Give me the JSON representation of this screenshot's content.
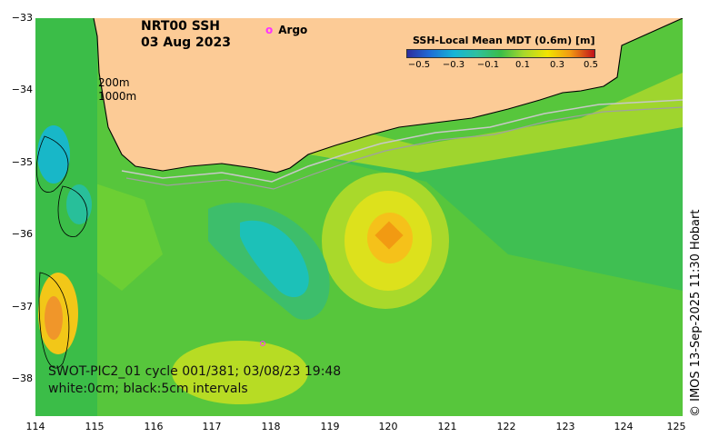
{
  "map": {
    "title_line1": "NRT00 SSH",
    "title_line2": "03 Aug 2023",
    "argo_marker": "o",
    "argo_label": "Argo",
    "depth_label_1": "200m",
    "depth_label_2": "1000m",
    "colorbar_title": "SSH-Local Mean MDT (0.6m) [m]",
    "colorbar_ticks": [
      "−0.5",
      "−0.3",
      "−0.1",
      "0.1",
      "0.3",
      "0.5"
    ],
    "swot_line1": "SWOT-PIC2_01 cycle 001/381; 03/08/23 19:48",
    "swot_line2": "white:0cm; black:5cm intervals",
    "credit": "© IMOS 13-Sep-2025 11:30 Hobart",
    "y_axis_ticks": [
      "−33",
      "−34",
      "−35",
      "−36",
      "−37",
      "−38"
    ],
    "x_axis_ticks": [
      "114",
      "115",
      "116",
      "117",
      "118",
      "119",
      "120",
      "121",
      "122",
      "123",
      "124",
      "125"
    ],
    "colors": {
      "land": "#fccb96",
      "argo": "#ff33ff",
      "background_anomaly": "#59c83a",
      "ocean_high": "#f2e400",
      "ocean_low": "#1cc1b8"
    }
  }
}
